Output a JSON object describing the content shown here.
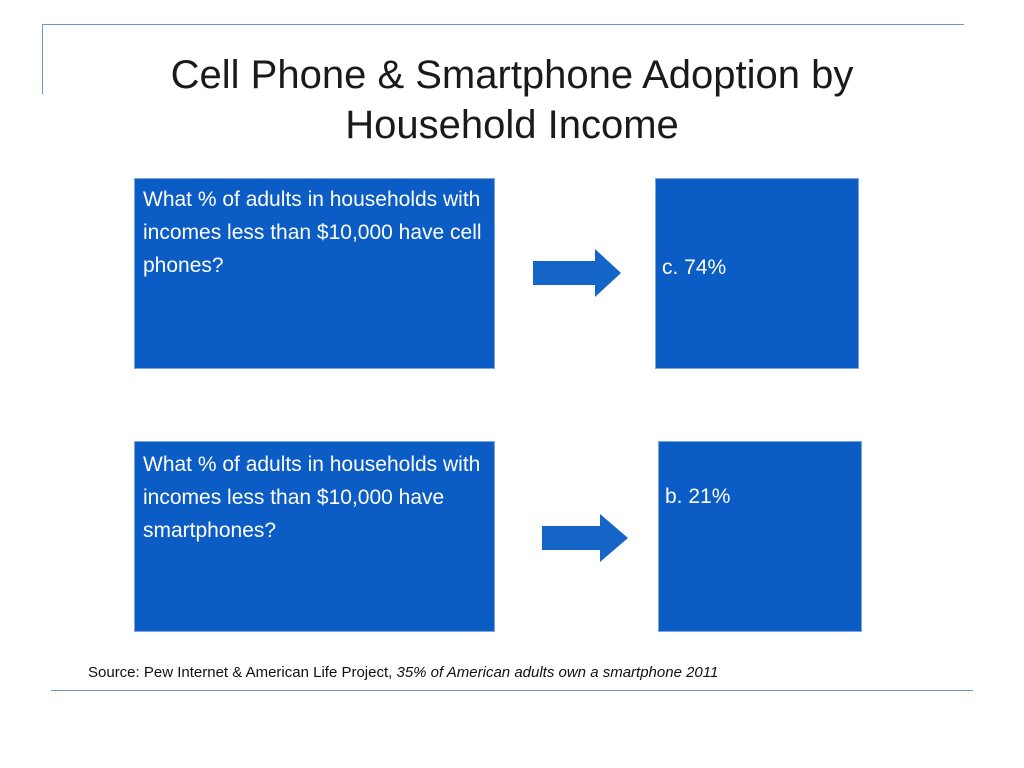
{
  "slide": {
    "title": "Cell Phone & Smartphone Adoption by Household Income"
  },
  "rows": [
    {
      "question": "What % of adults in households with incomes less than $10,000 have cell phones?",
      "answer": "c. 74%"
    },
    {
      "question": "What % of adults in households with incomes less than $10,000 have smartphones?",
      "answer": "b. 21%"
    }
  ],
  "source": {
    "prefix": "Source: Pew Internet & American Life Project, ",
    "title": "35% of American adults own a smartphone 2011"
  },
  "colors": {
    "box_fill": "#0b5cc4",
    "arrow_fill": "#1565c8",
    "rule": "#6f96c7"
  },
  "icons": {
    "arrow": "right-arrow-icon"
  }
}
